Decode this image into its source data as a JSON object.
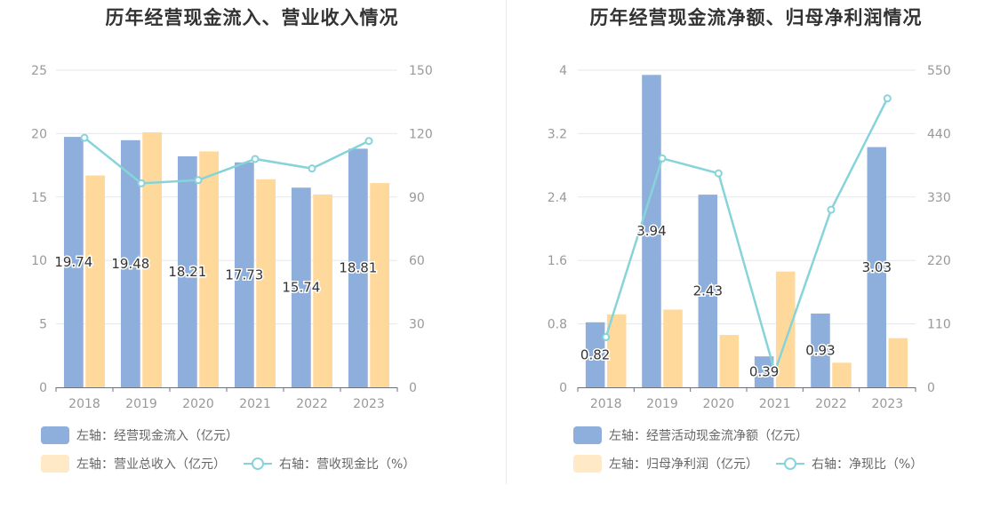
{
  "colors": {
    "bar_primary": "#8eaedb",
    "bar_secondary": "#ffd89b",
    "legend_secondary": "#ffe9c6",
    "line": "#86d4da",
    "axis_text": "#999999",
    "grid": "#e4e7ee"
  },
  "chart_data": [
    {
      "type": "bar+line",
      "title": "历年经营现金流入、营业收入情况",
      "categories": [
        "2018",
        "2019",
        "2020",
        "2021",
        "2022",
        "2023"
      ],
      "left_axis": {
        "ticks": [
          "0",
          "5",
          "10",
          "15",
          "20",
          "25"
        ],
        "min": 0,
        "max": 25
      },
      "right_axis": {
        "ticks": [
          "0",
          "30",
          "60",
          "90",
          "120",
          "150"
        ],
        "min": 0,
        "max": 150
      },
      "series": [
        {
          "name": "左轴：经营现金流入（亿元）",
          "axis": "left",
          "kind": "bar",
          "values": [
            19.74,
            19.48,
            18.21,
            17.73,
            15.74,
            18.81
          ],
          "labels": [
            "19.74",
            "19.48",
            "18.21",
            "17.73",
            "15.74",
            "18.81"
          ]
        },
        {
          "name": "左轴：营业总收入（亿元）",
          "axis": "left",
          "kind": "bar",
          "values": [
            16.7,
            20.1,
            18.6,
            16.4,
            15.2,
            16.1
          ]
        },
        {
          "name": "右轴：营收现金比（%）",
          "axis": "right",
          "kind": "line",
          "values": [
            118,
            96.5,
            98,
            108,
            103.5,
            116.5
          ]
        }
      ],
      "grid": true,
      "legend_position": "bottom-left"
    },
    {
      "type": "bar+line",
      "title": "历年经营现金流净额、归母净利润情况",
      "categories": [
        "2018",
        "2019",
        "2020",
        "2021",
        "2022",
        "2023"
      ],
      "left_axis": {
        "ticks": [
          "0",
          "0.8",
          "1.6",
          "2.4",
          "3.2",
          "4"
        ],
        "min": 0,
        "max": 4
      },
      "right_axis": {
        "ticks": [
          "0",
          "110",
          "220",
          "330",
          "440",
          "550"
        ],
        "min": 0,
        "max": 550
      },
      "series": [
        {
          "name": "左轴：经营活动现金流净额（亿元）",
          "axis": "left",
          "kind": "bar",
          "values": [
            0.82,
            3.94,
            2.43,
            0.39,
            0.93,
            3.03
          ],
          "labels": [
            "0.82",
            "3.94",
            "2.43",
            "0.39",
            "0.93",
            "3.03"
          ]
        },
        {
          "name": "左轴：归母净利润（亿元）",
          "axis": "left",
          "kind": "bar",
          "values": [
            0.92,
            0.98,
            0.66,
            1.46,
            0.31,
            0.62
          ]
        },
        {
          "name": "右轴：净现比（%）",
          "axis": "right",
          "kind": "line",
          "values": [
            87,
            397,
            371,
            27,
            308,
            501
          ]
        }
      ],
      "grid": true,
      "legend_position": "bottom-left"
    }
  ]
}
